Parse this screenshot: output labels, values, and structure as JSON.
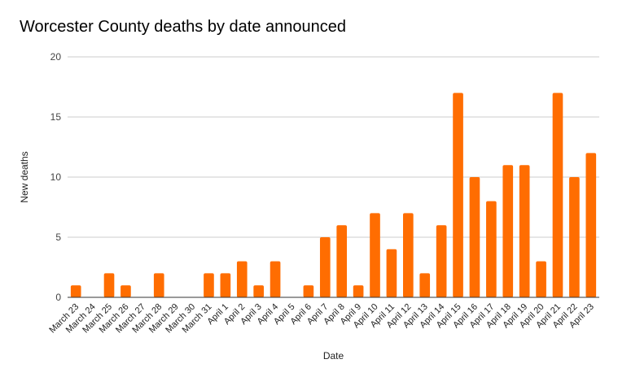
{
  "chart_data": {
    "type": "bar",
    "title": "Worcester County deaths by date announced",
    "xlabel": "Date",
    "ylabel": "New deaths",
    "ylim": [
      0,
      20
    ],
    "yticks": [
      0,
      5,
      10,
      15,
      20
    ],
    "grid": true,
    "legend": "none",
    "bar_color": "#ff6d01",
    "categories": [
      "March 23",
      "March 24",
      "March 25",
      "March 26",
      "March 27",
      "March 28",
      "March 29",
      "March 30",
      "March 31",
      "April 1",
      "April 2",
      "April 3",
      "April 4",
      "April 5",
      "April 6",
      "April 7",
      "April 8",
      "April 9",
      "April 10",
      "April 11",
      "April 12",
      "April 13",
      "April 14",
      "April 15",
      "April 16",
      "April 17",
      "April 18",
      "April 19",
      "April 20",
      "April 21",
      "April 22",
      "April 23"
    ],
    "values": [
      1,
      0,
      2,
      1,
      0,
      2,
      0,
      0,
      2,
      2,
      3,
      1,
      3,
      0,
      1,
      5,
      6,
      1,
      7,
      4,
      7,
      2,
      6,
      17,
      10,
      8,
      11,
      11,
      3,
      17,
      10,
      12
    ]
  }
}
